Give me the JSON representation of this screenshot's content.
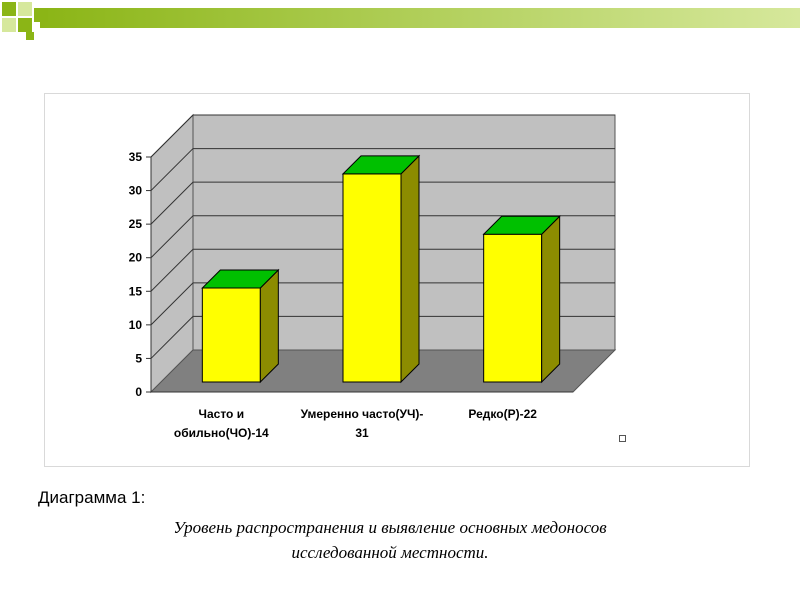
{
  "theme": {
    "top_band_dark": "#8bb516",
    "top_band_light": "#d6e89c",
    "bar_front": "#ffff00",
    "bar_side": "#8c8c00",
    "bar_top": "#00c000",
    "wall": "#c0c0c0",
    "floor": "#808080"
  },
  "chart_data": {
    "type": "bar",
    "categories": [
      "Часто и\nобильно(ЧО)-14",
      "Умеренно часто(УЧ)-\n31",
      "Редко(Р)-22"
    ],
    "values": [
      14,
      31,
      22
    ],
    "yticks": [
      "0",
      "5",
      "10",
      "15",
      "20",
      "25",
      "30",
      "35"
    ],
    "ylim": [
      0,
      35
    ],
    "grid": true,
    "legend": "right"
  },
  "caption": {
    "title": "Диаграмма 1:",
    "description": "Уровень распространения  и выявление основных медоносов\n исследованной местности."
  }
}
